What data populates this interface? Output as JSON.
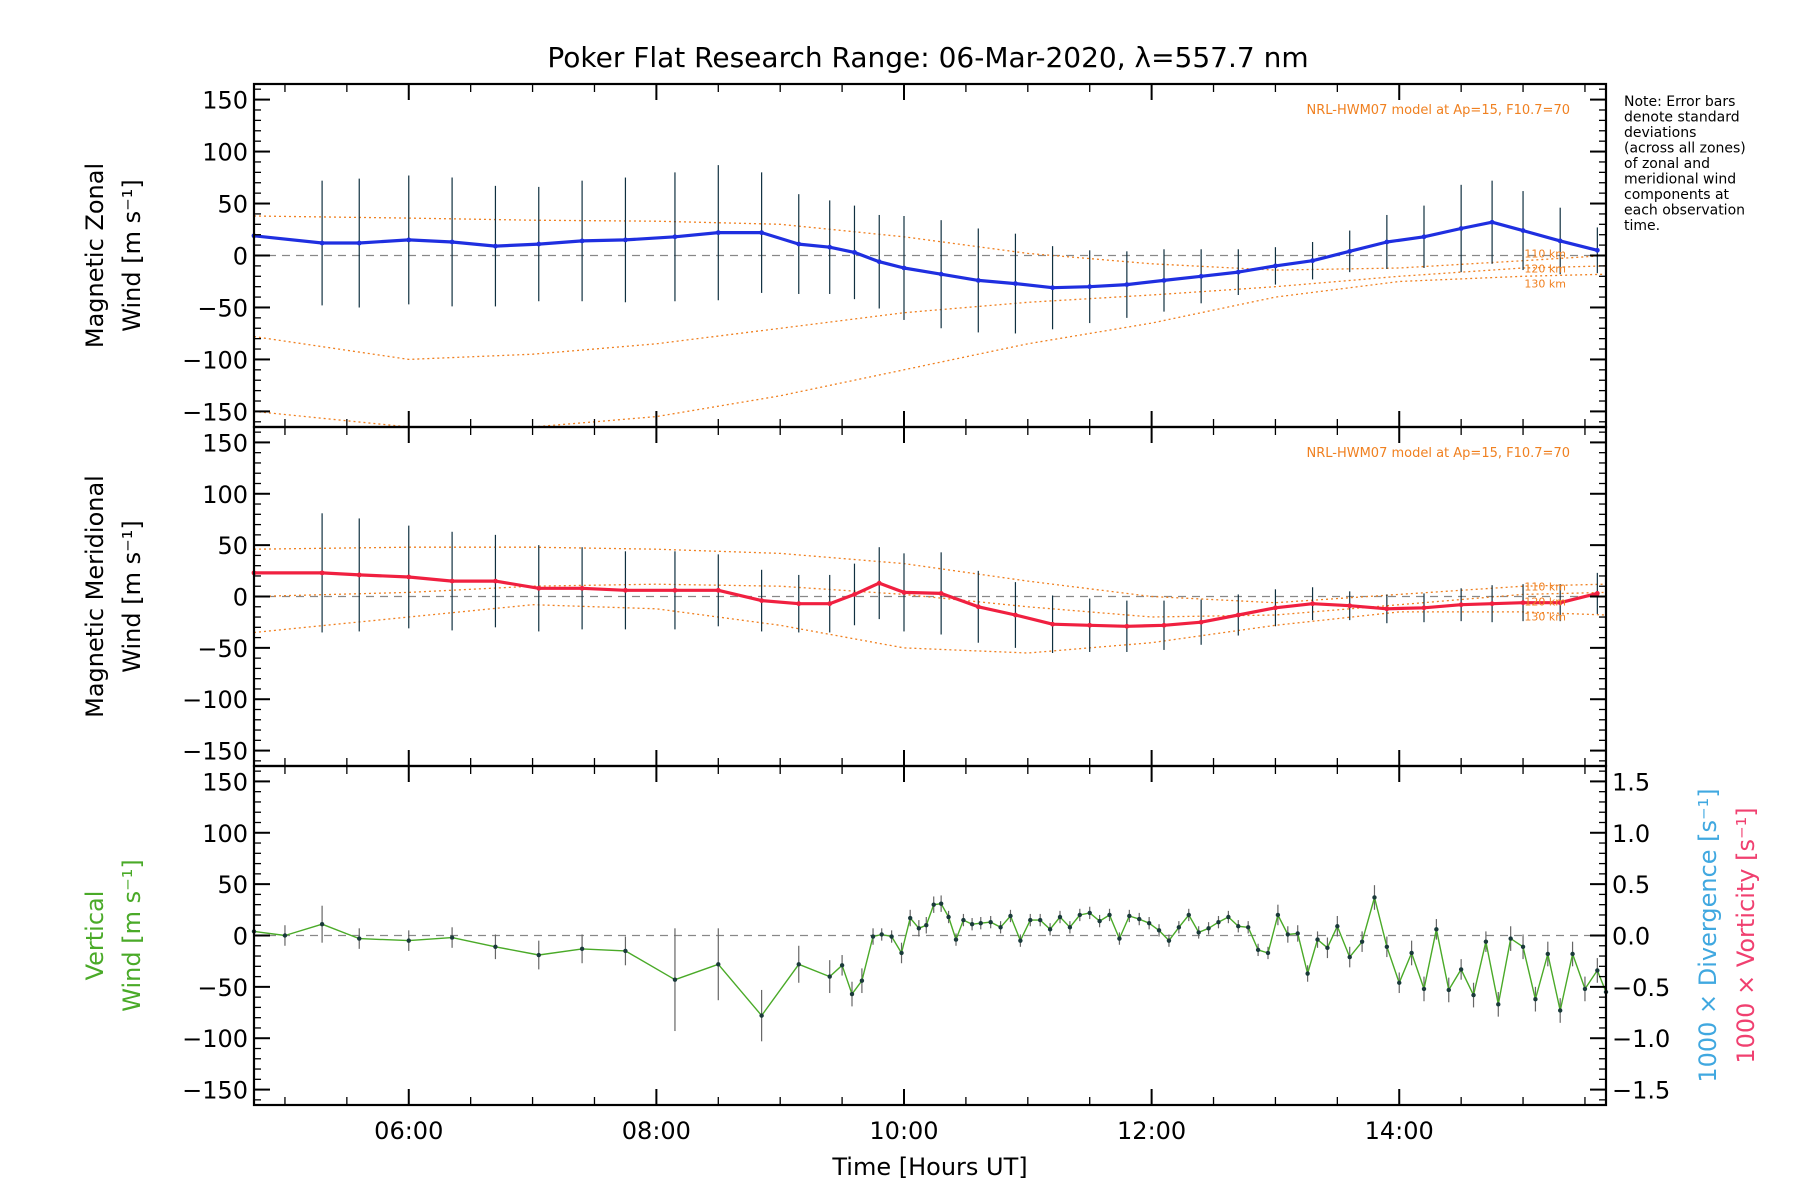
{
  "title": "Poker Flat Research Range: 06-Mar-2020, λ=557.7 nm",
  "note": [
    "Note: Error bars",
    "denote standard",
    "deviations",
    "(across all zones)",
    "of zonal and",
    "meridional wind",
    "components at",
    "each observation",
    "time."
  ],
  "model_label": "NRL-HWM07 model at Ap=15, F10.7=70",
  "colors": {
    "zonal": "#1f2fe0",
    "zonal_zone": "#3f9fe0",
    "meridional": "#f02040",
    "meridional_zone": "#ff5a7a",
    "model": "#f08020",
    "errorbar": "#103040",
    "vertical": "#4aaa28",
    "divergence_axis": "#40a8e0",
    "vorticity_axis": "#f04070",
    "zero_line": "#888888",
    "scatter": "#9090ff"
  },
  "chart_data": [
    {
      "type": "line",
      "panel": "zonal",
      "ylabel": [
        "Magnetic Zonal",
        "Wind [m s⁻¹]"
      ],
      "ylim": [
        -165,
        165
      ],
      "yticks": [
        150,
        100,
        50,
        0,
        -50,
        -100,
        -150
      ],
      "xlim": [
        4.75,
        15.67
      ],
      "model_altitude_labels": [
        "110 km",
        "120 km",
        "130 km"
      ],
      "series": [
        {
          "role": "measured",
          "x": [
            4.75,
            5.3,
            5.6,
            6.0,
            6.35,
            6.7,
            7.05,
            7.4,
            7.75,
            8.15,
            8.5,
            8.85,
            9.15,
            9.4,
            9.6,
            9.8,
            10.0,
            10.3,
            10.6,
            10.9,
            11.2,
            11.5,
            11.8,
            12.1,
            12.4,
            12.7,
            13.0,
            13.3,
            13.6,
            13.9,
            14.2,
            14.5,
            14.75,
            15.0,
            15.3,
            15.6
          ],
          "y": [
            19,
            12,
            12,
            15,
            13,
            9,
            11,
            14,
            15,
            18,
            22,
            22,
            11,
            8,
            3,
            -6,
            -12,
            -18,
            -24,
            -27,
            -31,
            -30,
            -28,
            -24,
            -20,
            -16,
            -10,
            -5,
            4,
            13,
            18,
            26,
            32,
            24,
            14,
            5
          ],
          "err": [
            58,
            60,
            62,
            62,
            62,
            58,
            55,
            58,
            60,
            62,
            65,
            58,
            48,
            45,
            45,
            45,
            50,
            52,
            50,
            48,
            40,
            35,
            32,
            30,
            26,
            22,
            18,
            18,
            20,
            26,
            30,
            42,
            40,
            38,
            32,
            22
          ]
        },
        {
          "role": "model",
          "altitude": "110 km",
          "x": [
            4.75,
            6,
            7,
            8,
            9,
            10,
            11,
            12,
            13,
            14,
            15,
            15.67
          ],
          "y": [
            38,
            36,
            34,
            33,
            30,
            18,
            2,
            -8,
            -14,
            -12,
            -5,
            0
          ]
        },
        {
          "role": "model",
          "altitude": "120 km",
          "x": [
            4.75,
            6,
            7,
            8,
            9,
            10,
            11,
            12,
            13,
            14,
            15,
            15.67
          ],
          "y": [
            -78,
            -100,
            -95,
            -85,
            -70,
            -55,
            -45,
            -38,
            -30,
            -20,
            -12,
            -10
          ]
        },
        {
          "role": "model",
          "altitude": "130 km",
          "x": [
            4.75,
            6,
            7,
            8,
            9,
            10,
            11,
            12,
            13,
            14,
            15,
            15.67
          ],
          "y": [
            -150,
            -165,
            -165,
            -155,
            -135,
            -110,
            -85,
            -65,
            -40,
            -25,
            -20,
            -18
          ]
        }
      ]
    },
    {
      "type": "line",
      "panel": "meridional",
      "ylabel": [
        "Magnetic Meridional",
        "Wind [m s⁻¹]"
      ],
      "ylim": [
        -165,
        165
      ],
      "yticks": [
        150,
        100,
        50,
        0,
        -50,
        -100,
        -150
      ],
      "xlim": [
        4.75,
        15.67
      ],
      "model_altitude_labels": [
        "110 km",
        "120 km",
        "130 km"
      ],
      "series": [
        {
          "role": "measured",
          "x": [
            4.75,
            5.3,
            5.6,
            6.0,
            6.35,
            6.7,
            7.05,
            7.4,
            7.75,
            8.15,
            8.5,
            8.85,
            9.15,
            9.4,
            9.6,
            9.8,
            10.0,
            10.3,
            10.6,
            10.9,
            11.2,
            11.5,
            11.8,
            12.1,
            12.4,
            12.7,
            13.0,
            13.3,
            13.6,
            13.9,
            14.2,
            14.5,
            14.75,
            15.0,
            15.3,
            15.6
          ],
          "y": [
            23,
            23,
            21,
            19,
            15,
            15,
            8,
            8,
            6,
            6,
            6,
            -4,
            -7,
            -7,
            2,
            13,
            4,
            3,
            -10,
            -18,
            -27,
            -28,
            -29,
            -28,
            -25,
            -18,
            -11,
            -7,
            -9,
            -12,
            -11,
            -8,
            -7,
            -6,
            -6,
            3
          ],
          "err": [
            55,
            58,
            55,
            50,
            48,
            45,
            42,
            40,
            38,
            38,
            35,
            30,
            28,
            28,
            30,
            35,
            38,
            40,
            35,
            32,
            28,
            26,
            25,
            24,
            22,
            20,
            18,
            16,
            14,
            14,
            14,
            16,
            18,
            18,
            18,
            20
          ]
        },
        {
          "role": "model",
          "altitude": "110 km",
          "x": [
            4.75,
            6,
            7,
            8,
            9,
            10,
            11,
            12,
            13,
            14,
            15,
            15.67
          ],
          "y": [
            46,
            48,
            48,
            46,
            42,
            32,
            15,
            0,
            -6,
            2,
            10,
            12
          ]
        },
        {
          "role": "model",
          "altitude": "120 km",
          "x": [
            4.75,
            6,
            7,
            8,
            9,
            10,
            11,
            12,
            13,
            14,
            15,
            15.67
          ],
          "y": [
            0,
            4,
            10,
            12,
            10,
            2,
            -10,
            -20,
            -18,
            -8,
            2,
            4
          ]
        },
        {
          "role": "model",
          "altitude": "130 km",
          "x": [
            4.75,
            6,
            7,
            8,
            9,
            10,
            11,
            12,
            13,
            14,
            15,
            15.67
          ],
          "y": [
            -35,
            -20,
            -8,
            -12,
            -28,
            -50,
            -55,
            -45,
            -28,
            -15,
            -15,
            -18
          ]
        }
      ]
    },
    {
      "type": "line",
      "panel": "vertical",
      "ylabel": [
        "Vertical",
        "Wind [m s⁻¹]"
      ],
      "ylim": [
        -165,
        165
      ],
      "yticks": [
        150,
        100,
        50,
        0,
        -50,
        -100,
        -150
      ],
      "y2label_divergence": "1000 × Divergence [s⁻¹]",
      "y2label_vorticity": "1000 × Vorticity [s⁻¹]",
      "y2lim": [
        -1.65,
        1.65
      ],
      "y2ticks": [
        "1.5",
        "1.0",
        "0.5",
        "0.0",
        "-0.5",
        "-1.0",
        "-1.5"
      ],
      "xlim": [
        4.75,
        15.67
      ],
      "xticks": [
        "06:00",
        "08:00",
        "10:00",
        "12:00",
        "14:00"
      ],
      "xtick_values": [
        6,
        8,
        10,
        12,
        14
      ],
      "xlabel": "Time [Hours UT]",
      "series": [
        {
          "role": "vertical",
          "x": [
            4.75,
            5.0,
            5.3,
            5.6,
            6.0,
            6.35,
            6.7,
            7.05,
            7.4,
            7.75,
            8.15,
            8.5,
            8.85,
            9.15,
            9.4,
            9.5,
            9.58,
            9.66,
            9.75,
            9.82,
            9.9,
            9.98,
            10.05,
            10.12,
            10.18,
            10.24,
            10.3,
            10.36,
            10.42,
            10.48,
            10.55,
            10.62,
            10.7,
            10.78,
            10.86,
            10.94,
            11.02,
            11.1,
            11.18,
            11.26,
            11.34,
            11.42,
            11.5,
            11.58,
            11.66,
            11.74,
            11.82,
            11.9,
            11.98,
            12.06,
            12.14,
            12.22,
            12.3,
            12.38,
            12.46,
            12.54,
            12.62,
            12.7,
            12.78,
            12.86,
            12.94,
            13.02,
            13.1,
            13.18,
            13.26,
            13.34,
            13.42,
            13.5,
            13.6,
            13.7,
            13.8,
            13.9,
            14.0,
            14.1,
            14.2,
            14.3,
            14.4,
            14.5,
            14.6,
            14.7,
            14.8,
            14.9,
            15.0,
            15.1,
            15.2,
            15.3,
            15.4,
            15.5,
            15.6,
            15.67
          ],
          "y": [
            4,
            0,
            11,
            -3,
            -5,
            -2,
            -11,
            -19,
            -13,
            -15,
            -43,
            -28,
            -78,
            -28,
            -40,
            -29,
            -57,
            -44,
            -1,
            1,
            -1,
            -17,
            17,
            7,
            10,
            30,
            31,
            18,
            -4,
            15,
            11,
            12,
            13,
            8,
            19,
            -5,
            15,
            15,
            6,
            18,
            8,
            20,
            22,
            14,
            20,
            -3,
            19,
            16,
            12,
            5,
            -5,
            8,
            20,
            3,
            7,
            13,
            18,
            9,
            8,
            -14,
            -17,
            20,
            1,
            2,
            -37,
            -4,
            -12,
            9,
            -21,
            -6,
            37,
            -11,
            -46,
            -17,
            -52,
            6,
            -53,
            -33,
            -58,
            -6,
            -67,
            -3,
            -11,
            -62,
            -18,
            -73,
            -18,
            -52,
            -34,
            -55
          ],
          "err": [
            10,
            10,
            18,
            10,
            10,
            10,
            12,
            14,
            14,
            14,
            50,
            35,
            25,
            18,
            16,
            10,
            12,
            12,
            8,
            6,
            6,
            10,
            8,
            8,
            8,
            8,
            8,
            6,
            6,
            6,
            6,
            6,
            6,
            6,
            6,
            6,
            6,
            6,
            6,
            6,
            6,
            6,
            6,
            6,
            6,
            6,
            6,
            6,
            6,
            6,
            6,
            6,
            6,
            6,
            6,
            6,
            6,
            6,
            6,
            6,
            6,
            10,
            8,
            8,
            8,
            8,
            10,
            10,
            10,
            10,
            12,
            10,
            10,
            12,
            12,
            10,
            12,
            10,
            12,
            10,
            12,
            12,
            12,
            12,
            12,
            12,
            12,
            12,
            12,
            12
          ]
        }
      ]
    }
  ]
}
